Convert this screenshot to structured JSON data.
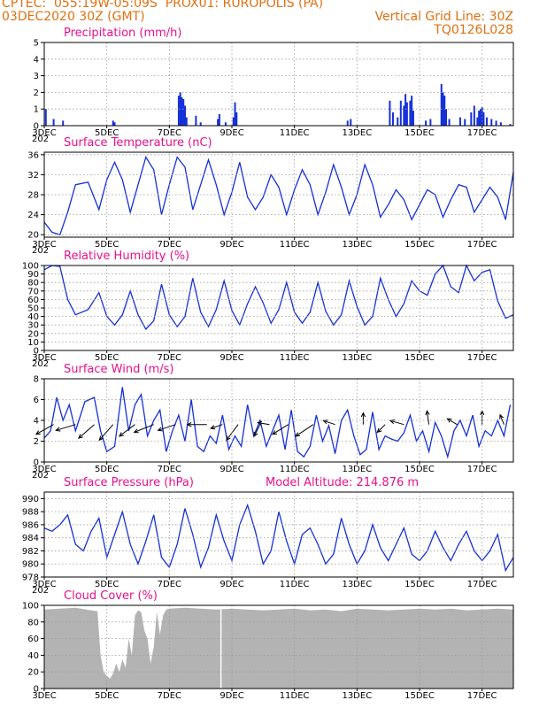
{
  "header": {
    "line1_left": "CPTEC:  055:19W-05:09S  PROX01: RUROPOLIS (PA)",
    "line2_left": "03DEC2020 30Z (GMT)",
    "line2_right": "Vertical Grid Line: 30Z",
    "line3_right": "TQ0126L028"
  },
  "x_axis": {
    "ticks": [
      "3DEC",
      "5DEC",
      "7DEC",
      "9DEC",
      "11DEC",
      "13DEC",
      "15DEC",
      "17DEC"
    ],
    "tick_days": [
      3,
      5,
      7,
      9,
      11,
      13,
      15,
      17
    ],
    "range_days": [
      3,
      18
    ],
    "stub_label": "202"
  },
  "colors": {
    "series": "#1530d8",
    "cloud": "#b3b3b3",
    "title": "#e8108a",
    "header": "#e07010",
    "grid": "#9a9a9a"
  },
  "chart_data": [
    {
      "type": "bar",
      "title": "Precipitation (mm/h)",
      "ylim": [
        0,
        5
      ],
      "yticks": [
        0,
        1,
        2,
        3,
        4,
        5
      ],
      "series": [
        {
          "x": [
            3.05,
            3.3,
            3.6,
            5.2,
            5.25,
            7.3,
            7.35,
            7.4,
            7.45,
            7.5,
            7.55,
            7.85,
            8.0,
            8.55,
            8.6,
            8.8,
            9.05,
            9.1,
            9.15,
            12.7,
            12.8,
            14.05,
            14.15,
            14.3,
            14.4,
            14.5,
            14.55,
            14.6,
            14.7,
            14.75,
            14.8,
            15.2,
            15.35,
            15.7,
            15.75,
            15.8,
            15.85,
            15.95,
            16.3,
            16.45,
            16.65,
            16.75,
            16.85,
            16.9,
            16.95,
            17.0,
            17.05,
            17.15,
            17.3,
            17.45,
            17.6,
            17.9
          ],
          "values": [
            1.0,
            0.4,
            0.3,
            0.3,
            0.2,
            1.8,
            2.0,
            1.7,
            1.6,
            1.2,
            0.5,
            0.6,
            0.2,
            0.4,
            0.7,
            0.2,
            0.5,
            1.4,
            0.8,
            0.3,
            0.4,
            1.5,
            0.8,
            0.5,
            1.5,
            1.2,
            1.9,
            1.4,
            1.5,
            1.8,
            0.9,
            0.3,
            0.4,
            2.5,
            2.0,
            1.8,
            1.0,
            0.4,
            0.5,
            0.4,
            0.8,
            1.2,
            0.5,
            0.9,
            1.0,
            1.1,
            0.8,
            0.5,
            0.4,
            0.3,
            0.2,
            0.1
          ]
        }
      ]
    },
    {
      "type": "line",
      "title": "Surface Temperature (nC)",
      "ylim": [
        19.5,
        36.5
      ],
      "yticks": [
        20,
        24,
        28,
        32,
        36
      ],
      "series": [
        {
          "x": [
            3.0,
            3.25,
            3.5,
            3.75,
            4.0,
            4.4,
            4.75,
            5.0,
            5.25,
            5.5,
            5.75,
            6.0,
            6.25,
            6.5,
            6.75,
            7.0,
            7.25,
            7.5,
            7.75,
            8.0,
            8.25,
            8.5,
            8.75,
            9.0,
            9.25,
            9.5,
            9.75,
            10.0,
            10.25,
            10.5,
            10.75,
            11.0,
            11.25,
            11.5,
            11.75,
            12.0,
            12.25,
            12.5,
            12.75,
            13.0,
            13.25,
            13.5,
            13.75,
            14.0,
            14.25,
            14.5,
            14.75,
            15.0,
            15.25,
            15.5,
            15.75,
            16.0,
            16.25,
            16.5,
            16.75,
            17.0,
            17.25,
            17.5,
            17.75,
            18.0
          ],
          "values": [
            22.5,
            20.5,
            20.0,
            24.5,
            30.0,
            30.5,
            25.0,
            31.0,
            34.5,
            31.0,
            24.5,
            30.0,
            35.5,
            33.0,
            24.0,
            30.0,
            35.5,
            33.5,
            25.0,
            30.0,
            35.0,
            30.0,
            24.0,
            28.5,
            34.5,
            27.5,
            25.0,
            27.5,
            32.0,
            29.5,
            24.0,
            29.0,
            33.0,
            30.0,
            24.0,
            28.5,
            34.0,
            29.5,
            24.0,
            28.0,
            34.0,
            30.0,
            23.5,
            26.0,
            29.0,
            27.0,
            23.0,
            26.0,
            29.0,
            28.0,
            23.5,
            27.0,
            30.0,
            29.5,
            24.5,
            27.0,
            29.5,
            27.5,
            23.0,
            32.5
          ]
        }
      ]
    },
    {
      "type": "line",
      "title": "Relative Humidity (%)",
      "ylim": [
        0,
        100
      ],
      "yticks": [
        0,
        10,
        20,
        30,
        40,
        50,
        60,
        70,
        80,
        90,
        100
      ],
      "series": [
        {
          "x": [
            3.0,
            3.25,
            3.5,
            3.75,
            4.0,
            4.4,
            4.75,
            5.0,
            5.25,
            5.5,
            5.75,
            6.0,
            6.25,
            6.5,
            6.75,
            7.0,
            7.25,
            7.5,
            7.75,
            8.0,
            8.25,
            8.5,
            8.75,
            9.0,
            9.25,
            9.5,
            9.75,
            10.0,
            10.25,
            10.5,
            10.75,
            11.0,
            11.25,
            11.5,
            11.75,
            12.0,
            12.25,
            12.5,
            12.75,
            13.0,
            13.25,
            13.5,
            13.75,
            14.0,
            14.25,
            14.5,
            14.75,
            15.0,
            15.25,
            15.5,
            15.75,
            16.0,
            16.25,
            16.5,
            16.75,
            17.0,
            17.25,
            17.5,
            17.75,
            18.0
          ],
          "values": [
            95.0,
            100.0,
            99.0,
            60.0,
            42.0,
            48.0,
            68.0,
            40.0,
            30.0,
            42.0,
            70.0,
            42.0,
            25.0,
            35.0,
            78.0,
            42.0,
            28.0,
            40.0,
            85.0,
            45.0,
            28.0,
            48.0,
            82.0,
            47.0,
            30.0,
            55.0,
            75.0,
            56.0,
            32.0,
            48.0,
            80.0,
            45.0,
            32.0,
            45.0,
            80.0,
            46.0,
            30.0,
            42.0,
            82.0,
            52.0,
            30.0,
            40.0,
            85.0,
            60.0,
            40.0,
            55.0,
            82.0,
            70.0,
            65.0,
            90.0,
            100.0,
            75.0,
            68.0,
            100.0,
            82.0,
            92.0,
            95.0,
            58.0,
            38.0,
            42.0
          ]
        }
      ]
    },
    {
      "type": "line",
      "title": "Surface Wind (m/s)",
      "ylim": [
        0,
        8
      ],
      "yticks": [
        0,
        2,
        4,
        6,
        8
      ],
      "series": [
        {
          "x": [
            3.0,
            3.2,
            3.4,
            3.6,
            3.8,
            4.0,
            4.3,
            4.6,
            4.8,
            5.0,
            5.25,
            5.5,
            5.7,
            5.9,
            6.1,
            6.3,
            6.5,
            6.7,
            6.9,
            7.1,
            7.3,
            7.5,
            7.7,
            7.9,
            8.1,
            8.3,
            8.5,
            8.7,
            8.9,
            9.1,
            9.3,
            9.5,
            9.7,
            9.9,
            10.1,
            10.3,
            10.5,
            10.7,
            10.9,
            11.1,
            11.3,
            11.5,
            11.7,
            11.9,
            12.1,
            12.3,
            12.5,
            12.7,
            12.9,
            13.1,
            13.3,
            13.5,
            13.7,
            13.9,
            14.1,
            14.3,
            14.5,
            14.7,
            14.9,
            15.1,
            15.3,
            15.5,
            15.7,
            15.9,
            16.1,
            16.3,
            16.5,
            16.7,
            16.9,
            17.1,
            17.3,
            17.5,
            17.7,
            17.9
          ],
          "values": [
            2.3,
            3.0,
            6.2,
            4.0,
            5.5,
            3.0,
            5.8,
            6.2,
            3.0,
            1.0,
            1.5,
            7.2,
            3.0,
            5.5,
            6.5,
            2.5,
            4.0,
            5.0,
            1.0,
            3.0,
            4.5,
            2.0,
            6.0,
            1.5,
            1.0,
            2.5,
            1.8,
            4.5,
            1.2,
            2.5,
            1.5,
            5.5,
            2.5,
            4.0,
            1.5,
            3.0,
            4.5,
            1.2,
            5.0,
            1.0,
            0.5,
            1.5,
            4.5,
            2.0,
            3.5,
            0.8,
            4.0,
            5.0,
            2.5,
            0.7,
            1.2,
            4.8,
            1.2,
            2.5,
            2.2,
            2.0,
            2.8,
            4.5,
            2.0,
            3.0,
            1.0,
            3.8,
            2.5,
            0.5,
            3.0,
            4.0,
            2.5,
            4.5,
            1.5,
            3.0,
            2.5,
            4.0,
            2.5,
            5.5
          ]
        }
      ],
      "vectors": [
        {
          "x": 3.3,
          "u": -0.9,
          "v": -0.5
        },
        {
          "x": 4.0,
          "u": -1.0,
          "v": -0.3
        },
        {
          "x": 4.6,
          "u": -0.8,
          "v": -0.7
        },
        {
          "x": 5.2,
          "u": -0.7,
          "v": -0.8
        },
        {
          "x": 5.9,
          "u": -0.8,
          "v": -0.6
        },
        {
          "x": 6.5,
          "u": -1.0,
          "v": -0.4
        },
        {
          "x": 7.2,
          "u": -0.9,
          "v": -0.3
        },
        {
          "x": 8.2,
          "u": -1.0,
          "v": 0.0
        },
        {
          "x": 8.7,
          "u": -0.6,
          "v": -0.2
        },
        {
          "x": 9.2,
          "u": -0.6,
          "v": -0.8
        },
        {
          "x": 9.9,
          "u": -0.3,
          "v": -0.6
        },
        {
          "x": 10.2,
          "u": -0.6,
          "v": 0.1
        },
        {
          "x": 10.8,
          "u": -0.8,
          "v": -0.5
        },
        {
          "x": 11.6,
          "u": -0.9,
          "v": -0.6
        },
        {
          "x": 12.3,
          "u": -0.6,
          "v": 0.2
        },
        {
          "x": 13.2,
          "u": 0.0,
          "v": 0.6
        },
        {
          "x": 13.9,
          "u": -0.4,
          "v": -0.4
        },
        {
          "x": 14.5,
          "u": -0.7,
          "v": 0.2
        },
        {
          "x": 15.3,
          "u": -0.1,
          "v": 0.7
        },
        {
          "x": 16.2,
          "u": -0.5,
          "v": 0.3
        },
        {
          "x": 17.0,
          "u": 0.0,
          "v": 0.7
        },
        {
          "x": 17.7,
          "u": -0.2,
          "v": 0.5
        }
      ]
    },
    {
      "type": "line",
      "title": "Surface Pressure (hPa)",
      "annotation": "Model Altitude: 214.876 m",
      "ylim": [
        978,
        991
      ],
      "yticks": [
        978,
        980,
        982,
        984,
        986,
        988,
        990
      ],
      "series": [
        {
          "x": [
            3.0,
            3.25,
            3.5,
            3.75,
            4.0,
            4.25,
            4.5,
            4.75,
            5.0,
            5.25,
            5.5,
            5.75,
            6.0,
            6.25,
            6.5,
            6.75,
            7.0,
            7.25,
            7.5,
            7.75,
            8.0,
            8.25,
            8.5,
            8.75,
            9.0,
            9.25,
            9.5,
            9.75,
            10.0,
            10.25,
            10.5,
            10.75,
            11.0,
            11.25,
            11.5,
            11.75,
            12.0,
            12.25,
            12.5,
            12.75,
            13.0,
            13.25,
            13.5,
            13.75,
            14.0,
            14.25,
            14.5,
            14.75,
            15.0,
            15.25,
            15.5,
            15.75,
            16.0,
            16.25,
            16.5,
            16.75,
            17.0,
            17.25,
            17.5,
            17.75,
            18.0
          ],
          "values": [
            985.5,
            985.0,
            986.0,
            987.5,
            983.0,
            982.0,
            985.0,
            987.0,
            981.0,
            984.5,
            988.0,
            983.0,
            980.0,
            983.5,
            987.5,
            981.0,
            979.5,
            983.0,
            988.5,
            984.5,
            979.5,
            982.5,
            987.5,
            983.5,
            980.5,
            986.0,
            989.0,
            985.0,
            980.0,
            982.0,
            988.0,
            983.5,
            980.0,
            984.5,
            985.5,
            983.0,
            980.0,
            981.5,
            987.0,
            983.0,
            980.0,
            982.0,
            986.0,
            982.5,
            980.5,
            983.0,
            985.5,
            981.5,
            980.5,
            982.0,
            985.0,
            982.5,
            980.5,
            983.0,
            985.0,
            982.0,
            980.5,
            982.0,
            984.5,
            979.0,
            981.0
          ]
        }
      ]
    },
    {
      "type": "area",
      "title": "Cloud Cover (%)",
      "ylim": [
        0,
        100
      ],
      "yticks": [
        0,
        20,
        40,
        60,
        80,
        100
      ],
      "series": [
        {
          "x": [
            3.0,
            3.5,
            4.0,
            4.5,
            4.7,
            4.8,
            4.9,
            5.0,
            5.1,
            5.2,
            5.3,
            5.4,
            5.5,
            5.6,
            5.7,
            5.8,
            5.9,
            6.0,
            6.1,
            6.2,
            6.3,
            6.4,
            6.5,
            6.6,
            6.7,
            6.8,
            6.9,
            7.0,
            7.5,
            8.0,
            8.5,
            9.0,
            9.5,
            10.0,
            10.5,
            11.0,
            11.5,
            12.0,
            12.5,
            13.0,
            13.5,
            14.0,
            14.5,
            15.0,
            15.5,
            16.0,
            16.5,
            17.0,
            17.5,
            18.0
          ],
          "values": [
            95.0,
            96.0,
            97.0,
            94.0,
            93.0,
            40.0,
            20.0,
            15.0,
            12.0,
            18.0,
            30.0,
            20.0,
            35.0,
            25.0,
            60.0,
            40.0,
            88.0,
            94.0,
            92.0,
            70.0,
            60.0,
            30.0,
            50.0,
            92.0,
            65.0,
            88.0,
            95.0,
            96.0,
            97.0,
            96.0,
            95.0,
            96.0,
            95.0,
            94.0,
            95.0,
            96.0,
            94.0,
            95.0,
            93.0,
            96.0,
            95.0,
            94.0,
            95.0,
            96.0,
            95.0,
            96.0,
            94.0,
            95.0,
            96.0,
            95.0
          ]
        }
      ]
    }
  ]
}
